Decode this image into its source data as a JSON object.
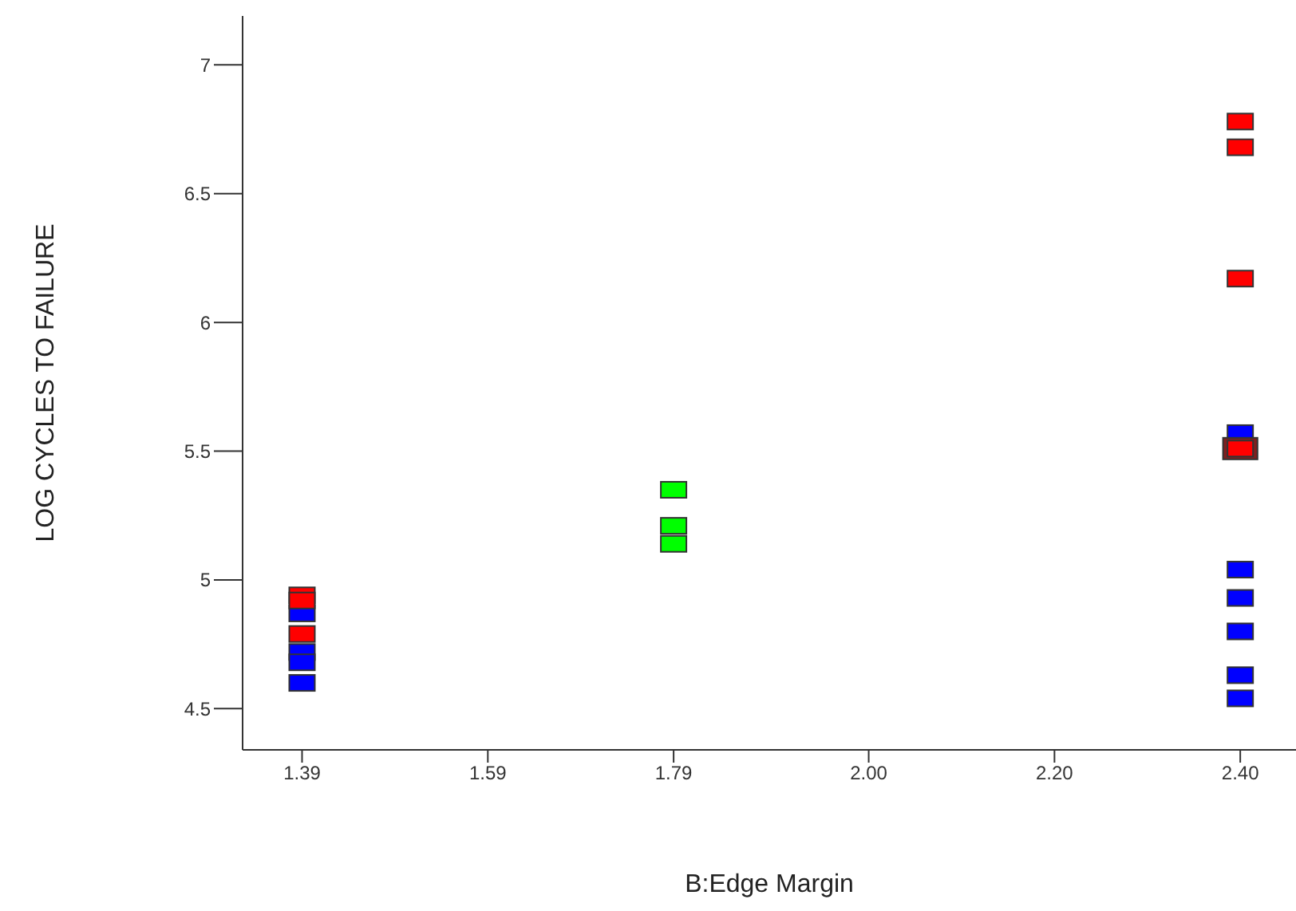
{
  "chart_data": {
    "type": "scatter",
    "xlabel": "B:Edge Margin",
    "ylabel": "LOG CYCLES TO FAILURE",
    "marker": "square",
    "grid": false,
    "legend": false,
    "xlim": [
      1.326,
      2.46
    ],
    "xticks": [
      1.39,
      1.59,
      1.79,
      {
        "value": 2.0,
        "label": "2.00"
      },
      {
        "value": 2.2,
        "label": "2.20"
      },
      {
        "value": 2.4,
        "label": "2.40"
      }
    ],
    "ylim": [
      4.34,
      7.19
    ],
    "yticks": [
      4.5,
      5,
      5.5,
      6,
      6.5,
      7
    ],
    "series": [
      {
        "color": "#0000ff",
        "x": [
          1.39,
          1.39,
          1.39,
          1.39,
          2.4,
          2.4,
          2.4,
          2.4,
          2.4,
          2.4
        ],
        "values": [
          4.87,
          4.72,
          4.68,
          4.6,
          5.57,
          5.04,
          4.93,
          4.8,
          4.63,
          4.54
        ]
      },
      {
        "color": "#7f1f1f",
        "x": [
          2.4
        ],
        "values": [
          5.51
        ],
        "marker": "square"
      },
      {
        "color": "#ff0000",
        "x": [
          1.39,
          1.39,
          1.39,
          2.4,
          2.4,
          2.4,
          2.4
        ],
        "values": [
          4.94,
          4.92,
          4.79,
          6.78,
          6.68,
          6.17,
          5.51
        ]
      },
      {
        "color": "#00ff00",
        "x": [
          1.79,
          1.79,
          1.79
        ],
        "values": [
          5.35,
          5.21,
          5.14
        ]
      }
    ]
  }
}
